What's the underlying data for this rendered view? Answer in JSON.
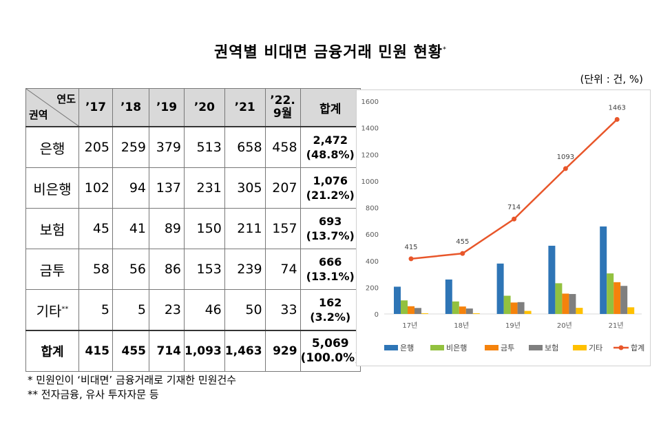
{
  "title": "권역별 비대면 금융거래 민원 현황",
  "title_mark": "*",
  "unit": "(단위 : 건, %)",
  "table": {
    "corner_top": "연도",
    "corner_bottom": "권역",
    "headers": [
      "’17",
      "’18",
      "’19",
      "’20",
      "’21",
      "’22.\n9월",
      "합계"
    ],
    "rows": [
      {
        "label": "은행",
        "mark": "",
        "values": [
          "205",
          "259",
          "379",
          "513",
          "658",
          "458"
        ],
        "total": "2,472",
        "share": "(48.8%)"
      },
      {
        "label": "비은행",
        "mark": "",
        "values": [
          "102",
          "94",
          "137",
          "231",
          "305",
          "207"
        ],
        "total": "1,076",
        "share": "(21.2%)"
      },
      {
        "label": "보험",
        "mark": "",
        "values": [
          "45",
          "41",
          "89",
          "150",
          "211",
          "157"
        ],
        "total": "693",
        "share": "(13.7%)"
      },
      {
        "label": "금투",
        "mark": "",
        "values": [
          "58",
          "56",
          "86",
          "153",
          "239",
          "74"
        ],
        "total": "666",
        "share": "(13.1%)"
      },
      {
        "label": "기타",
        "mark": "**",
        "values": [
          "5",
          "5",
          "23",
          "46",
          "50",
          "33"
        ],
        "total": "162",
        "share": "(3.2%)"
      }
    ],
    "sum_row": {
      "label": "합계",
      "values": [
        "415",
        "455",
        "714",
        "1,093",
        "1,463",
        "929"
      ],
      "total": "5,069",
      "share": "(100.0%)"
    }
  },
  "notes": [
    "* 민원인이 ‘비대면’ 금융거래로 기재한 민원건수",
    "** 전자금융, 유사 투자자문 등"
  ],
  "chart_data": {
    "type": "bar",
    "categories": [
      "17년",
      "18년",
      "19년",
      "20년",
      "21년"
    ],
    "series": [
      {
        "name": "은행",
        "kind": "bar",
        "color": "#2e75b6",
        "values": [
          205,
          259,
          379,
          513,
          658
        ]
      },
      {
        "name": "비은행",
        "kind": "bar",
        "color": "#92c13f",
        "values": [
          102,
          94,
          137,
          231,
          305
        ]
      },
      {
        "name": "금투",
        "kind": "bar",
        "color": "#f5820c",
        "values": [
          58,
          56,
          86,
          153,
          239
        ]
      },
      {
        "name": "보험",
        "kind": "bar",
        "color": "#7f7f7f",
        "values": [
          45,
          41,
          89,
          150,
          211
        ]
      },
      {
        "name": "기타",
        "kind": "bar",
        "color": "#ffc000",
        "values": [
          5,
          5,
          23,
          46,
          50
        ]
      },
      {
        "name": "합계",
        "kind": "line",
        "color": "#e8562a",
        "values": [
          415,
          455,
          714,
          1093,
          1463
        ]
      }
    ],
    "line_labels": [
      "415",
      "455",
      "714",
      "1093",
      "1463"
    ],
    "yticks": [
      0,
      200,
      400,
      600,
      800,
      1000,
      1200,
      1400,
      1600
    ],
    "ylim": [
      0,
      1600
    ],
    "legend": "bottom"
  }
}
